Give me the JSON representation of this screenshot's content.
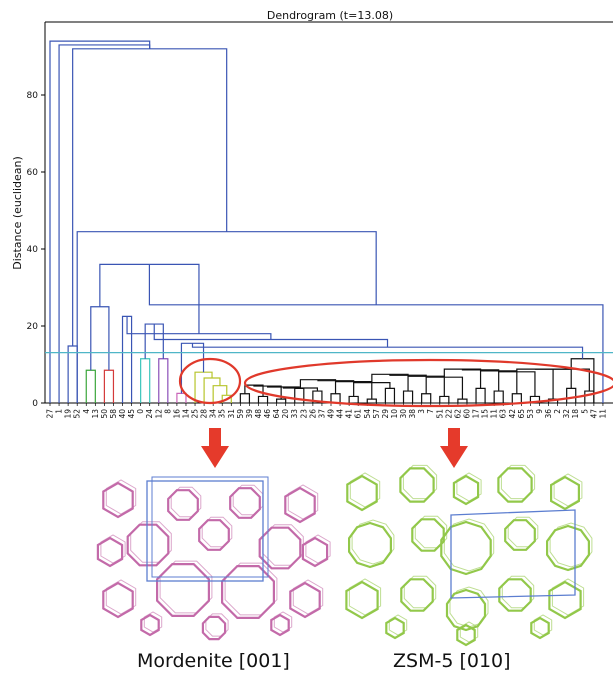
{
  "chart_data": {
    "type": "dendrogram",
    "title": "Dendrogram (t=13.08)",
    "ylabel": "Distance (euclidean)",
    "ylim": [
      0,
      95
    ],
    "yticks": [
      0,
      20,
      40,
      60,
      80
    ],
    "threshold": 13.08,
    "leaves": [
      "27",
      "1",
      "19",
      "52",
      "4",
      "13",
      "50",
      "58",
      "40",
      "45",
      "0",
      "24",
      "12",
      "8",
      "16",
      "14",
      "25",
      "28",
      "34",
      "35",
      "31",
      "59",
      "39",
      "48",
      "46",
      "64",
      "20",
      "33",
      "23",
      "26",
      "37",
      "49",
      "44",
      "41",
      "61",
      "54",
      "57",
      "29",
      "10",
      "30",
      "38",
      "3",
      "7",
      "51",
      "22",
      "62",
      "60",
      "17",
      "15",
      "11",
      "63",
      "42",
      "65",
      "53",
      "9",
      "36",
      "2",
      "32",
      "18",
      "5",
      "47",
      "11"
    ],
    "annotated_groups": [
      "Mordenite [001]",
      "ZSM-5 [010]"
    ]
  },
  "colors": {
    "axis": "#000000",
    "main_links": "#3a55b4",
    "threshold_line": "#4fb6c7",
    "cluster_green": "#3aa53a",
    "cluster_red": "#d43a3a",
    "cluster_teal": "#3cc5bc",
    "cluster_purple": "#8a4fb8",
    "cluster_pink": "#c966b8",
    "cluster_olive": "#b6c42a",
    "cluster_black": "#111111",
    "highlight_ellipse": "#e0392b",
    "arrow": "#e53a2b",
    "mordenite": "#c36aa9",
    "zsm5": "#92c84a",
    "unit_cell": "#5c7ed0"
  },
  "structures": {
    "left_label": "Mordenite [001]",
    "right_label": "ZSM-5 [010]"
  }
}
